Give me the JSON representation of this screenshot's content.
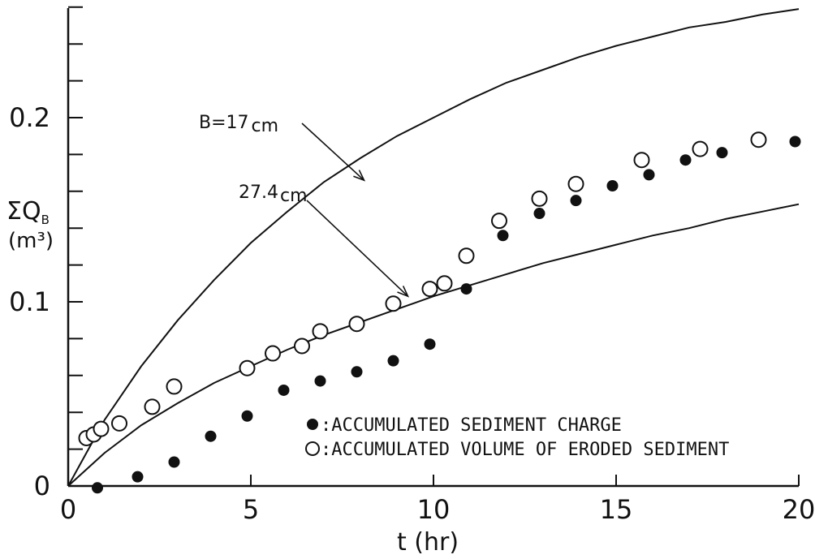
{
  "chart_data": {
    "type": "scatter",
    "title": "",
    "xlabel": "t (hr)",
    "ylabel": "ΣQB (m³)",
    "ylabel_parts": {
      "sigma": "ΣQ",
      "sub": "B",
      "unit": "(m³)"
    },
    "xlim": [
      0,
      20
    ],
    "ylim": [
      0,
      0.26
    ],
    "x_ticks": [
      "0",
      "5",
      "10",
      "15",
      "20"
    ],
    "y_ticks": [
      "0",
      "0.1",
      "0.2"
    ],
    "grid": false,
    "legend_position": "bottom-right",
    "legend": [
      {
        "marker": "filled-circle",
        "label": ":ACCUMULATED SEDIMENT CHARGE"
      },
      {
        "marker": "open-circle",
        "label": ":ACCUMULATED VOLUME OF ERODED SEDIMENT"
      }
    ],
    "series": [
      {
        "marker": "filled-circle",
        "points": [
          [
            0.8,
            -0.001
          ],
          [
            1.9,
            0.005
          ],
          [
            2.9,
            0.013
          ],
          [
            3.9,
            0.027
          ],
          [
            4.9,
            0.038
          ],
          [
            5.9,
            0.052
          ],
          [
            6.9,
            0.057
          ],
          [
            7.9,
            0.062
          ],
          [
            8.9,
            0.068
          ],
          [
            9.9,
            0.077
          ],
          [
            10.9,
            0.107
          ],
          [
            11.9,
            0.136
          ],
          [
            12.9,
            0.148
          ],
          [
            13.9,
            0.155
          ],
          [
            14.9,
            0.163
          ],
          [
            15.9,
            0.169
          ],
          [
            16.9,
            0.177
          ],
          [
            17.9,
            0.181
          ],
          [
            19.9,
            0.187
          ]
        ]
      },
      {
        "marker": "open-circle",
        "points": [
          [
            0.5,
            0.026
          ],
          [
            0.7,
            0.028
          ],
          [
            0.9,
            0.031
          ],
          [
            1.4,
            0.034
          ],
          [
            2.3,
            0.043
          ],
          [
            2.9,
            0.054
          ],
          [
            4.9,
            0.064
          ],
          [
            5.6,
            0.072
          ],
          [
            6.4,
            0.076
          ],
          [
            6.9,
            0.084
          ],
          [
            7.9,
            0.088
          ],
          [
            8.9,
            0.099
          ],
          [
            9.9,
            0.107
          ],
          [
            10.3,
            0.11
          ],
          [
            10.9,
            0.125
          ],
          [
            11.8,
            0.144
          ],
          [
            12.9,
            0.156
          ],
          [
            13.9,
            0.164
          ],
          [
            15.7,
            0.177
          ],
          [
            17.3,
            0.183
          ],
          [
            18.9,
            0.188
          ]
        ]
      }
    ],
    "curves": [
      {
        "label": "B=17cm",
        "label_parts": {
          "value": "B=17",
          "unit": "cm"
        },
        "arrow_to": [
          8.1,
          0.166
        ],
        "points": [
          [
            0,
            0
          ],
          [
            1,
            0.036
          ],
          [
            2,
            0.065
          ],
          [
            3,
            0.09
          ],
          [
            4,
            0.112
          ],
          [
            5,
            0.132
          ],
          [
            6,
            0.149
          ],
          [
            7,
            0.165
          ],
          [
            8,
            0.178
          ],
          [
            9,
            0.19
          ],
          [
            10,
            0.2
          ],
          [
            11,
            0.21
          ],
          [
            12,
            0.219
          ],
          [
            13,
            0.226
          ],
          [
            14,
            0.233
          ],
          [
            15,
            0.239
          ],
          [
            16,
            0.244
          ],
          [
            17,
            0.249
          ],
          [
            18,
            0.252
          ],
          [
            19,
            0.256
          ],
          [
            20,
            0.259
          ]
        ]
      },
      {
        "label": "27.4cm",
        "label_parts": {
          "value": "27.4",
          "unit": "cm"
        },
        "arrow_to": [
          9.3,
          0.103
        ],
        "points": [
          [
            0,
            0
          ],
          [
            1,
            0.018
          ],
          [
            2,
            0.033
          ],
          [
            3,
            0.045
          ],
          [
            4,
            0.056
          ],
          [
            5,
            0.065
          ],
          [
            6,
            0.074
          ],
          [
            7,
            0.082
          ],
          [
            8,
            0.089
          ],
          [
            9,
            0.096
          ],
          [
            10,
            0.103
          ],
          [
            11,
            0.109
          ],
          [
            12,
            0.115
          ],
          [
            13,
            0.121
          ],
          [
            14,
            0.126
          ],
          [
            15,
            0.131
          ],
          [
            16,
            0.136
          ],
          [
            17,
            0.14
          ],
          [
            18,
            0.145
          ],
          [
            19,
            0.149
          ],
          [
            20,
            0.153
          ]
        ]
      }
    ]
  }
}
